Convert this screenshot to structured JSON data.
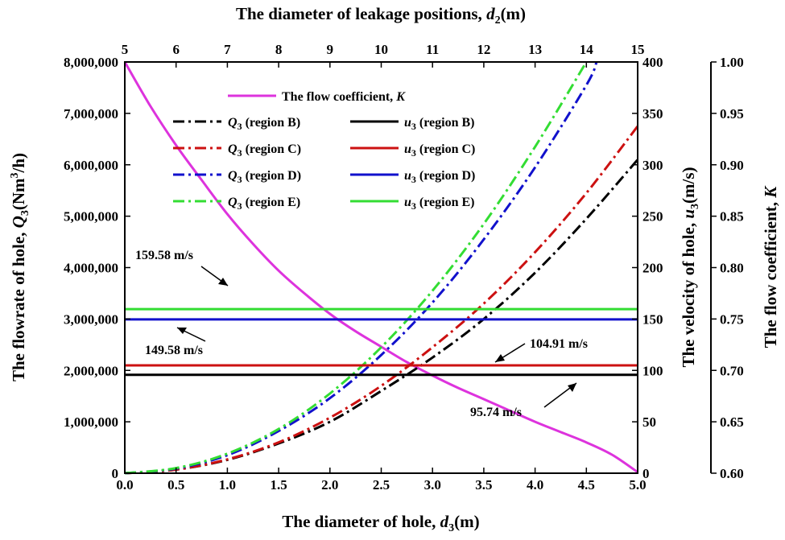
{
  "chart_data": {
    "type": "line",
    "x_axis_bottom": {
      "label": "The diameter of hole, ",
      "var": "d",
      "sub": "3",
      "unit": "(m)",
      "range": [
        0,
        5
      ],
      "ticks": [
        "0.0",
        "0.5",
        "1.0",
        "1.5",
        "2.0",
        "2.5",
        "3.0",
        "3.5",
        "4.0",
        "4.5",
        "5.0"
      ]
    },
    "x_axis_top": {
      "label": "The diameter of leakage positions, ",
      "var": "d",
      "sub": "2",
      "unit": "(m)",
      "range": [
        5,
        15
      ],
      "ticks": [
        "5",
        "6",
        "7",
        "8",
        "9",
        "10",
        "11",
        "12",
        "13",
        "14",
        "15"
      ]
    },
    "y_axis_left": {
      "label": "The flowrate of hole, ",
      "var": "Q",
      "sub": "3",
      "unit_pre": "(Nm",
      "unit_sup": "3",
      "unit_post": "/h)",
      "range": [
        0,
        8000000
      ],
      "ticks": [
        "0",
        "1,000,000",
        "2,000,000",
        "3,000,000",
        "4,000,000",
        "5,000,000",
        "6,000,000",
        "7,000,000",
        "8,000,000"
      ]
    },
    "y_axis_right1": {
      "label": "The velocity of hole, ",
      "var": "u",
      "sub": "3",
      "unit": "(m/s)",
      "range": [
        0,
        400
      ],
      "ticks": [
        "0",
        "50",
        "100",
        "150",
        "200",
        "250",
        "300",
        "350",
        "400"
      ]
    },
    "y_axis_right2": {
      "label": "The flow coefficient, ",
      "var": "K",
      "range": [
        0.6,
        1.0
      ],
      "ticks": [
        "0.60",
        "0.65",
        "0.70",
        "0.75",
        "0.80",
        "0.85",
        "0.90",
        "0.95",
        "1.00"
      ]
    },
    "series": [
      {
        "name": "The flow coefficient, K",
        "axis": "right2",
        "color": "#dd33dd",
        "style": "solid",
        "x": [
          0,
          0.25,
          0.5,
          0.75,
          1.0,
          1.25,
          1.5,
          1.75,
          2.0,
          2.25,
          2.5,
          2.75,
          3.0,
          3.25,
          3.5,
          3.75,
          4.0,
          4.25,
          4.5,
          4.75,
          5.0
        ],
        "y": [
          1.0,
          0.957,
          0.919,
          0.885,
          0.852,
          0.823,
          0.797,
          0.775,
          0.755,
          0.738,
          0.723,
          0.708,
          0.695,
          0.683,
          0.672,
          0.661,
          0.65,
          0.64,
          0.63,
          0.618,
          0.601
        ]
      },
      {
        "name": "Q3 (region B)",
        "axis": "left",
        "color": "#000000",
        "style": "dashdot",
        "x": [
          0,
          0.5,
          1.0,
          1.5,
          2.0,
          2.5,
          3.0,
          3.5,
          4.0,
          4.5,
          5.0
        ],
        "y": [
          0,
          70000,
          260000,
          580000,
          1000000,
          1600000,
          2250000,
          3000000,
          3900000,
          4950000,
          6100000
        ]
      },
      {
        "name": "Q3 (region C)",
        "axis": "left",
        "color": "#cc1111",
        "style": "dashdot",
        "x": [
          0,
          0.5,
          1.0,
          1.5,
          2.0,
          2.5,
          3.0,
          3.5,
          4.0,
          4.5,
          5.0
        ],
        "y": [
          0,
          70000,
          270000,
          600000,
          1080000,
          1700000,
          2450000,
          3300000,
          4300000,
          5450000,
          6750000
        ]
      },
      {
        "name": "Q3 (region D)",
        "axis": "left",
        "color": "#1111cc",
        "style": "dashdot",
        "x": [
          0,
          0.5,
          1.0,
          1.5,
          2.0,
          2.5,
          3.0,
          3.5,
          4.0,
          4.5,
          4.6
        ],
        "y": [
          0,
          90000,
          350000,
          820000,
          1460000,
          2300000,
          3320000,
          4550000,
          5950000,
          7550000,
          8000000
        ]
      },
      {
        "name": "Q3 (region E)",
        "axis": "left",
        "color": "#33dd33",
        "style": "dashdot",
        "x": [
          0,
          0.5,
          1.0,
          1.5,
          2.0,
          2.5,
          3.0,
          3.5,
          4.0,
          4.5
        ],
        "y": [
          0,
          100000,
          380000,
          860000,
          1550000,
          2450000,
          3550000,
          4850000,
          6350000,
          8000000
        ]
      },
      {
        "name": "u3 (region B)",
        "axis": "right1",
        "color": "#000000",
        "style": "solid",
        "x": [
          0,
          5
        ],
        "y": [
          95.74,
          95.74
        ]
      },
      {
        "name": "u3 (region C)",
        "axis": "right1",
        "color": "#cc1111",
        "style": "solid",
        "x": [
          0,
          5
        ],
        "y": [
          104.91,
          104.91
        ]
      },
      {
        "name": "u3 (region D)",
        "axis": "right1",
        "color": "#1111cc",
        "style": "solid",
        "x": [
          0,
          5
        ],
        "y": [
          149.58,
          149.58
        ]
      },
      {
        "name": "u3 (region E)",
        "axis": "right1",
        "color": "#33dd33",
        "style": "solid",
        "x": [
          0,
          5
        ],
        "y": [
          159.58,
          159.58
        ]
      }
    ],
    "legend": {
      "k_label": "The flow coefficient, ",
      "k_var": "K",
      "q_var": "Q",
      "u_var": "u",
      "sub": "3",
      "regions": [
        "(region B)",
        "(region C)",
        "(region D)",
        "(region E)"
      ]
    },
    "annotations": {
      "e_label": "159.58 m/s",
      "d_label": "149.58 m/s",
      "c_label": "104.91 m/s",
      "b_label": "95.74 m/s"
    }
  }
}
